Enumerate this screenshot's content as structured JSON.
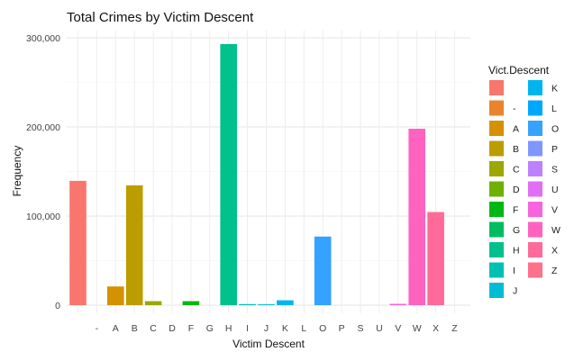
{
  "chart_data": {
    "type": "bar",
    "title": "Total Crimes by Victim Descent",
    "xlabel": "Victim Descent",
    "ylabel": "Frequency",
    "ylim": [
      0,
      310000
    ],
    "yticks": [
      0,
      100000,
      200000,
      300000
    ],
    "ytick_labels": [
      "0",
      "100,000",
      "200,000",
      "300,000"
    ],
    "grid": true,
    "legend": {
      "title": "Vict.Descent",
      "placement": "right"
    },
    "categories": [
      "",
      "-",
      "A",
      "B",
      "C",
      "D",
      "F",
      "G",
      "H",
      "I",
      "J",
      "K",
      "L",
      "O",
      "P",
      "S",
      "U",
      "V",
      "W",
      "X",
      "Z"
    ],
    "values": [
      139500,
      0,
      21000,
      134500,
      4500,
      0,
      4500,
      0,
      293000,
      1200,
      1000,
      5500,
      0,
      77000,
      0,
      0,
      0,
      1500,
      198000,
      104500,
      0
    ],
    "colors": [
      "#F8766D",
      "#E9842C",
      "#D69100",
      "#BC9D00",
      "#9CA700",
      "#6FB000",
      "#00B813",
      "#00BD61",
      "#00C08E",
      "#00C0B4",
      "#00BDD4",
      "#00B5EE",
      "#00A7FF",
      "#35A2FF",
      "#7F96FF",
      "#BC81FF",
      "#E26EF7",
      "#F863DF",
      "#FF62BF",
      "#FF6A9A",
      "#FF7189"
    ]
  }
}
